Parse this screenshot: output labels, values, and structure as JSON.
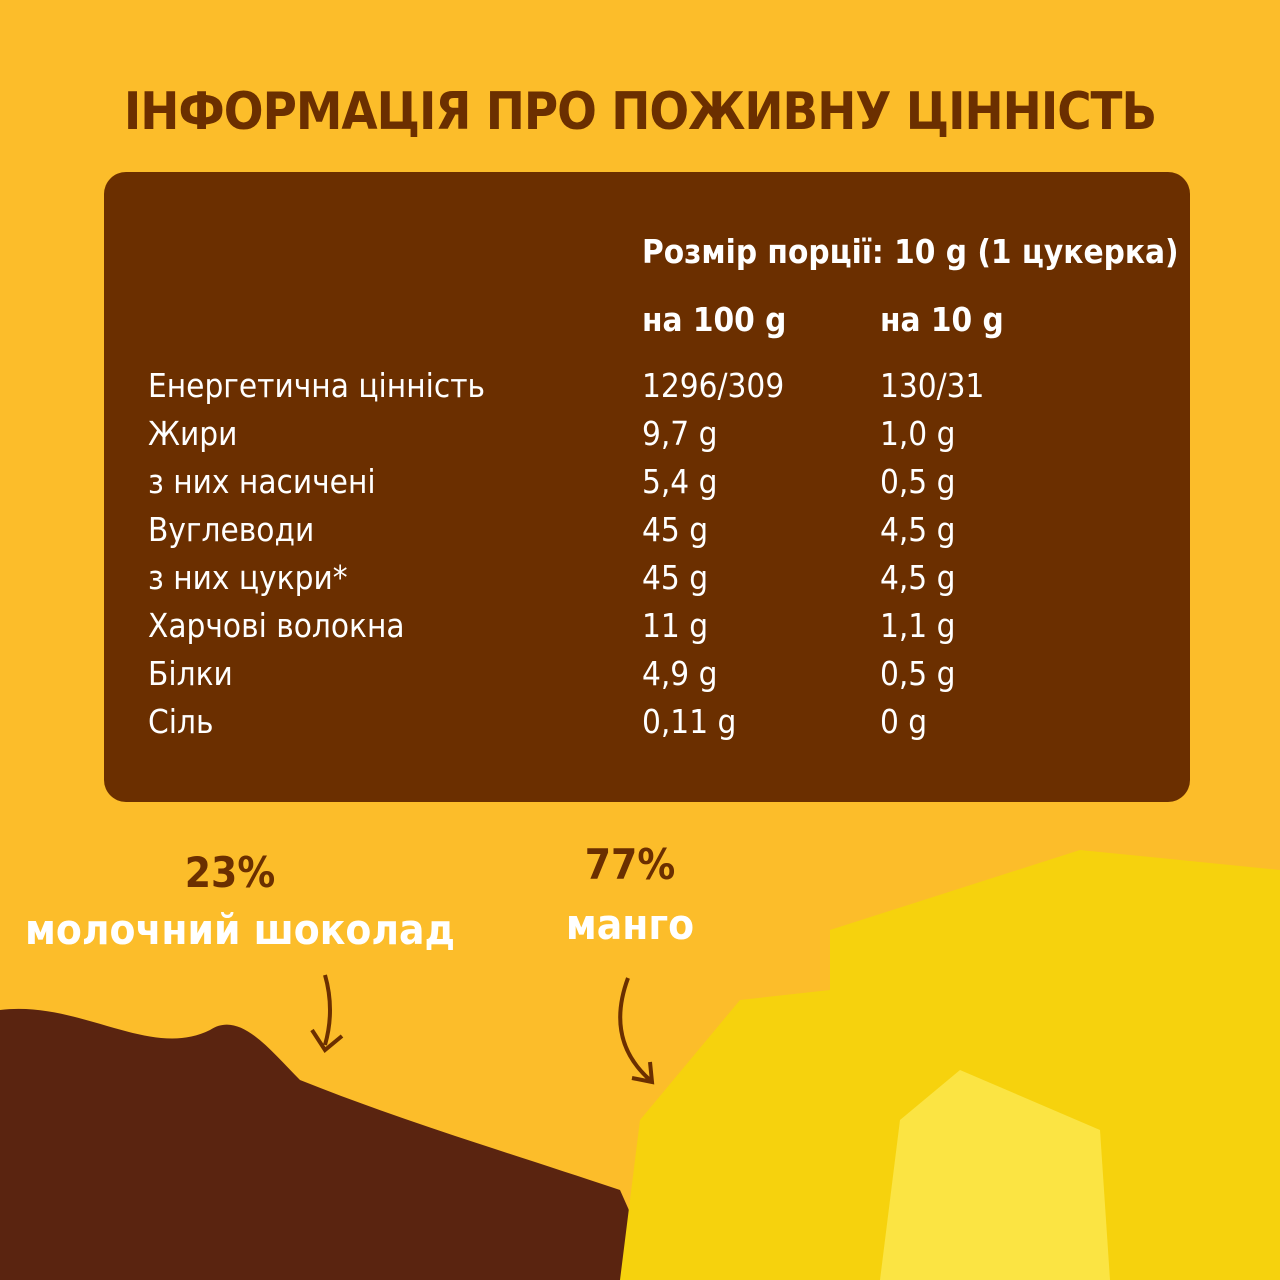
{
  "header": {
    "title": "ІНФОРМАЦІЯ ПРО ПОЖИВНУ ЦІННІСТЬ"
  },
  "table": {
    "serving": "Розмір порції: 10 g (1 цукерка)",
    "columns": [
      "на 100 g",
      "на 10 g"
    ],
    "rows": [
      [
        "Енергетична цінність",
        "1296/309",
        "130/31"
      ],
      [
        "Жири",
        "9,7 g",
        "1,0 g"
      ],
      [
        "з них насичені",
        "5,4 g",
        "0,5 g"
      ],
      [
        "Вуглеводи",
        "45 g",
        "4,5 g"
      ],
      [
        "з них цукри*",
        "45 g",
        "4,5 g"
      ],
      [
        "Харчові волокна",
        "11 g",
        "1,1 g"
      ],
      [
        "Білки",
        "4,9 g",
        "0,5 g"
      ],
      [
        "Сіль",
        "0,11 g",
        "0 g"
      ]
    ]
  },
  "labels": {
    "chocolate_percent": "23%",
    "chocolate": "молочний шоколад",
    "mango_percent": "77%",
    "mango": "манго"
  }
}
